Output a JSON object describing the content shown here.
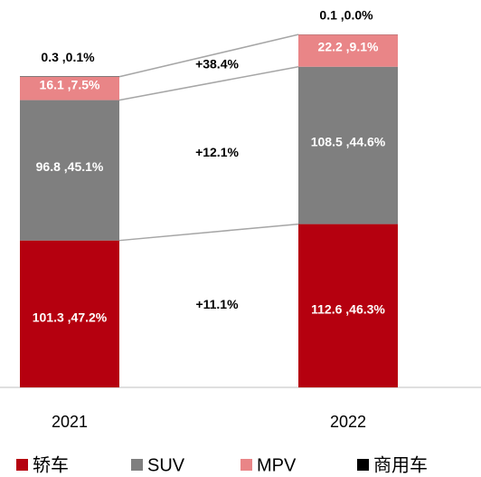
{
  "chart_data": {
    "type": "stacked_bar",
    "categories": [
      "2021",
      "2022"
    ],
    "series": [
      {
        "name": "轿车",
        "color": "#b5000f",
        "values": [
          101.3,
          112.6
        ],
        "value_labels": [
          "101.3 ,47.2%",
          "112.6 ,46.3%"
        ]
      },
      {
        "name": "SUV",
        "color": "#7f7f7f",
        "values": [
          96.8,
          108.5
        ],
        "value_labels": [
          "96.8 ,45.1%",
          "108.5 ,44.6%"
        ]
      },
      {
        "name": "MPV",
        "color": "#e98587",
        "values": [
          16.1,
          22.2
        ],
        "value_labels": [
          "16.1 ,7.5%",
          "22.2 ,9.1%"
        ]
      },
      {
        "name": "商用车",
        "color": "#000000",
        "values": [
          0.3,
          0.1
        ],
        "value_labels": [
          "0.3 ,0.1%",
          "0.1 ,0.0%"
        ]
      }
    ],
    "annotations": [
      "+11.1%",
      "+12.1%",
      "+38.4%"
    ]
  }
}
